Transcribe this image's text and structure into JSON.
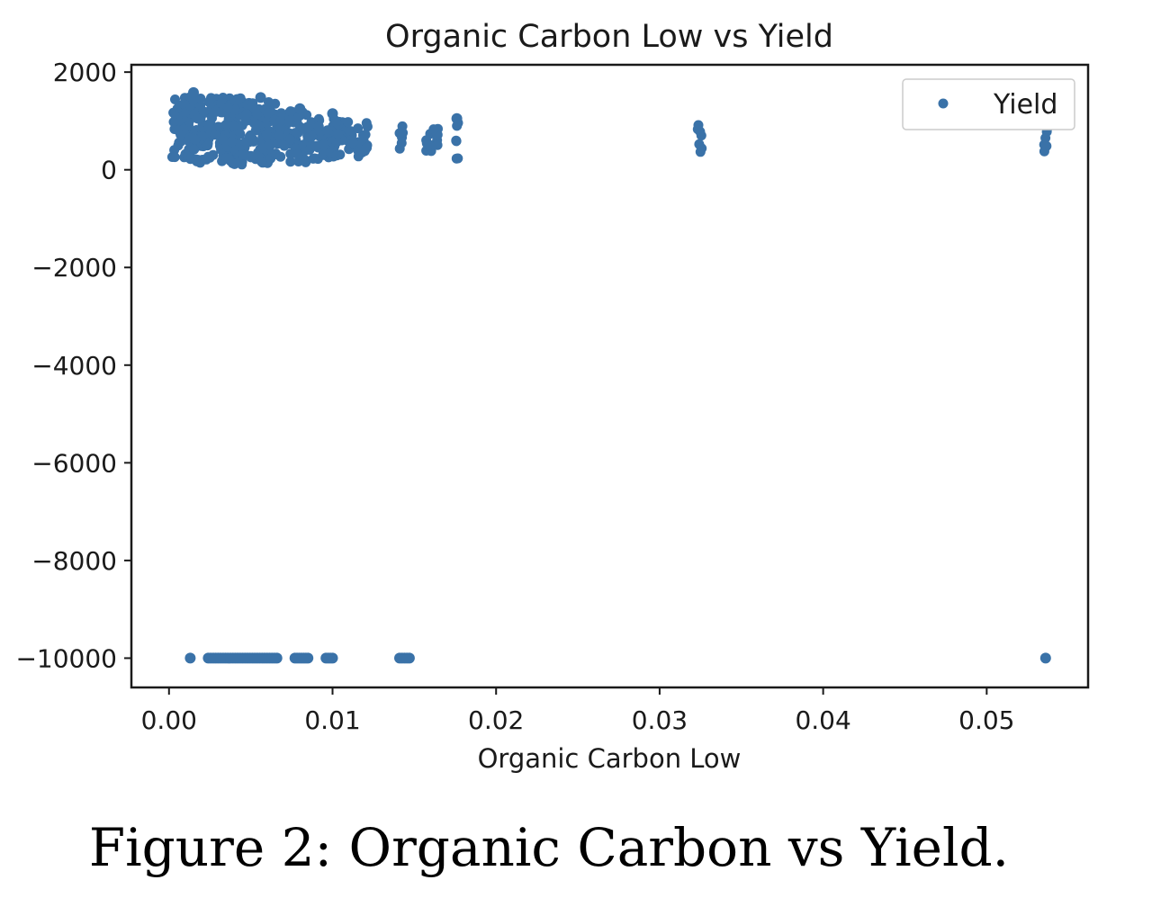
{
  "caption": "Figure 2: Organic Carbon vs Yield.",
  "chart_data": {
    "type": "scatter",
    "title": "Organic Carbon Low vs Yield",
    "xlabel": "Organic Carbon Low",
    "ylabel": "",
    "xlim": [
      -0.0023,
      0.0562
    ],
    "ylim": [
      -10600,
      2150
    ],
    "xticks": [
      0.0,
      0.01,
      0.02,
      0.03,
      0.04,
      0.05
    ],
    "xtick_labels": [
      "0.00",
      "0.01",
      "0.02",
      "0.03",
      "0.04",
      "0.05"
    ],
    "yticks": [
      2000,
      0,
      -2000,
      -4000,
      -6000,
      -8000,
      -10000
    ],
    "ytick_labels": [
      "2000",
      "0",
      "−2000",
      "−4000",
      "−6000",
      "−8000",
      "−10000"
    ],
    "grid": false,
    "legend_position": "top-right",
    "marker_color": "#3a72a8",
    "series": [
      {
        "name": "Yield",
        "dense_clusters": [
          {
            "x": [
              0.0002,
              0.0013
            ],
            "y": [
              150,
              1550
            ]
          },
          {
            "x": [
              0.0013,
              0.0045
            ],
            "y": [
              100,
              1500
            ]
          },
          {
            "x": [
              0.0045,
              0.0065
            ],
            "y": [
              100,
              1400
            ]
          },
          {
            "x": [
              0.0065,
              0.0085
            ],
            "y": [
              150,
              1200
            ]
          },
          {
            "x": [
              0.0085,
              0.0102
            ],
            "y": [
              200,
              1050
            ]
          },
          {
            "x": [
              0.0102,
              0.0122
            ],
            "y": [
              250,
              1000
            ]
          },
          {
            "x": [
              0.0141,
              0.0143
            ],
            "y": [
              200,
              900
            ]
          },
          {
            "x": [
              0.0157,
              0.0165
            ],
            "y": [
              300,
              850
            ]
          },
          {
            "x": [
              0.0175,
              0.0177
            ],
            "y": [
              200,
              1000
            ]
          },
          {
            "x": [
              0.0323,
              0.0326
            ],
            "y": [
              250,
              950
            ]
          },
          {
            "x": [
              0.0535,
              0.0537
            ],
            "y": [
              300,
              850
            ]
          }
        ],
        "points": [
          {
            "x": 0.0013,
            "y": -10000
          },
          {
            "x": 0.0024,
            "y": -10000
          },
          {
            "x": 0.003,
            "y": -10000
          },
          {
            "x": 0.0036,
            "y": -10000
          },
          {
            "x": 0.0042,
            "y": -10000
          },
          {
            "x": 0.0048,
            "y": -10000
          },
          {
            "x": 0.0054,
            "y": -10000
          },
          {
            "x": 0.006,
            "y": -10000
          },
          {
            "x": 0.0066,
            "y": -10000
          },
          {
            "x": 0.0077,
            "y": -10000
          },
          {
            "x": 0.0081,
            "y": -10000
          },
          {
            "x": 0.0085,
            "y": -10000
          },
          {
            "x": 0.0096,
            "y": -10000
          },
          {
            "x": 0.01,
            "y": -10000
          },
          {
            "x": 0.0141,
            "y": -10000
          },
          {
            "x": 0.0147,
            "y": -10000
          },
          {
            "x": 0.0536,
            "y": -10000
          },
          {
            "x": 0.0015,
            "y": 1580
          },
          {
            "x": 0.0056,
            "y": 1480
          },
          {
            "x": 0.008,
            "y": 1250
          },
          {
            "x": 0.01,
            "y": 1150
          },
          {
            "x": 0.0176,
            "y": 1050
          }
        ]
      }
    ]
  }
}
